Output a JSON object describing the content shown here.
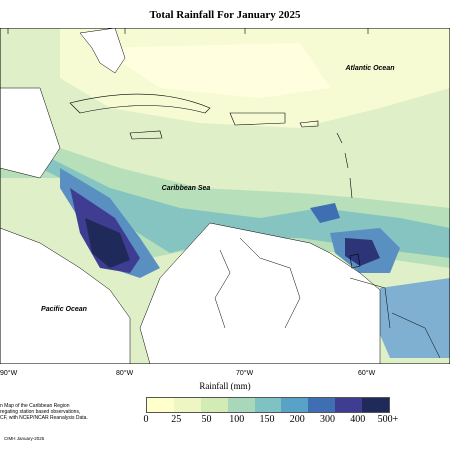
{
  "title": "Total Rainfall For January 2025",
  "labels": {
    "atlantic": "Atlantic Ocean",
    "caribbean": "Caribbean Sea",
    "pacific": "Pacific Ocean"
  },
  "longitudes": [
    "90°W",
    "80°W",
    "70°W",
    "60°W"
  ],
  "axis_title": "Rainfall (mm)",
  "legend": {
    "ticks": [
      "0",
      "25",
      "50",
      "100",
      "150",
      "200",
      "300",
      "400",
      "500+"
    ],
    "colors": [
      "#ffffcc",
      "#eef7c4",
      "#d3ecb6",
      "#a8d7b9",
      "#7fc2c4",
      "#58a2c8",
      "#3f6fb2",
      "#3e3d92",
      "#1f2a5a"
    ]
  },
  "note_lines": [
    "n Map of the Caribbean Region",
    "regating station based observations,",
    "CF, with NCEP/NCAR Reanalysis Data."
  ],
  "credit": "CIMH January-2025"
}
